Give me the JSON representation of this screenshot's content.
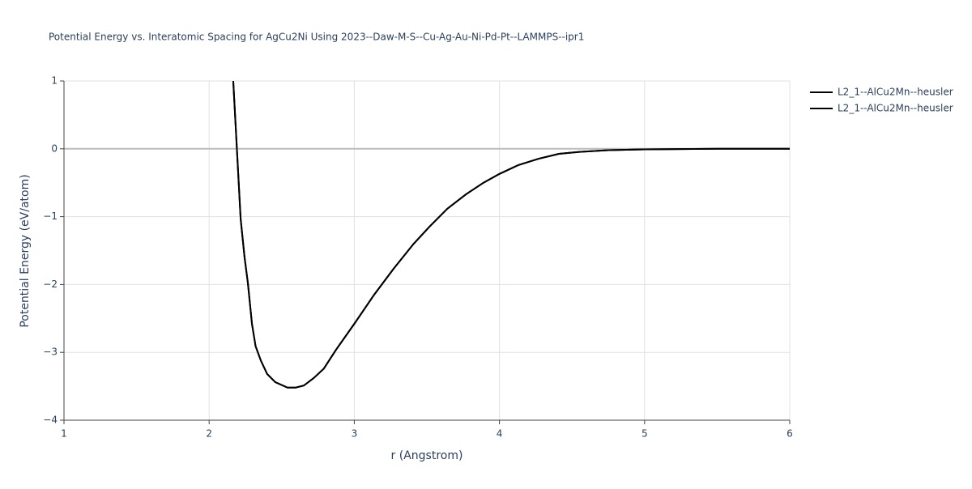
{
  "chart_data": {
    "type": "line",
    "title": "Potential Energy vs. Interatomic Spacing for AgCu2Ni Using 2023--Daw-M-S--Cu-Ag-Au-Ni-Pd-Pt--LAMMPS--ipr1",
    "x_label": "r (Angstrom)",
    "y_label": "Potential Energy (eV/atom)",
    "x": [
      2.166,
      2.19,
      2.217,
      2.244,
      2.267,
      2.295,
      2.32,
      2.356,
      2.4,
      2.456,
      2.54,
      2.596,
      2.652,
      2.72,
      2.79,
      2.875,
      3.0,
      3.137,
      3.27,
      3.405,
      3.517,
      3.64,
      3.77,
      3.89,
      4.0,
      4.13,
      4.27,
      4.41,
      4.55,
      4.75,
      5.0,
      5.5,
      6.0
    ],
    "series": [
      {
        "name": "L2_1--AlCu2Mn--heusler",
        "color": "#000000",
        "values": [
          1,
          0.045,
          -1.03,
          -1.6,
          -1.98,
          -2.58,
          -2.91,
          -3.12,
          -3.32,
          -3.44,
          -3.52,
          -3.52,
          -3.49,
          -3.38,
          -3.24,
          -2.96,
          -2.58,
          -2.15,
          -1.77,
          -1.41,
          -1.15,
          -0.885,
          -0.67,
          -0.5,
          -0.37,
          -0.24,
          -0.146,
          -0.074,
          -0.045,
          -0.02,
          -0.008,
          0,
          0
        ]
      },
      {
        "name": "L2_1--AlCu2Mn--heusler",
        "color": "#000000",
        "values": [
          1,
          0.045,
          -1.03,
          -1.6,
          -1.98,
          -2.58,
          -2.91,
          -3.12,
          -3.32,
          -3.44,
          -3.52,
          -3.52,
          -3.49,
          -3.38,
          -3.24,
          -2.96,
          -2.58,
          -2.15,
          -1.77,
          -1.41,
          -1.15,
          -0.885,
          -0.67,
          -0.5,
          -0.37,
          -0.24,
          -0.146,
          -0.074,
          -0.045,
          -0.02,
          -0.008,
          0,
          0
        ]
      }
    ],
    "xlim": [
      1,
      6
    ],
    "ylim": [
      -4,
      1
    ],
    "xticks": [
      1,
      2,
      3,
      4,
      5,
      6
    ],
    "yticks": [
      {
        "value": -4,
        "label": "−4"
      },
      {
        "value": -3,
        "label": "−3"
      },
      {
        "value": -2,
        "label": "−2"
      },
      {
        "value": -1,
        "label": "−1"
      },
      0,
      1
    ],
    "grid": true
  }
}
